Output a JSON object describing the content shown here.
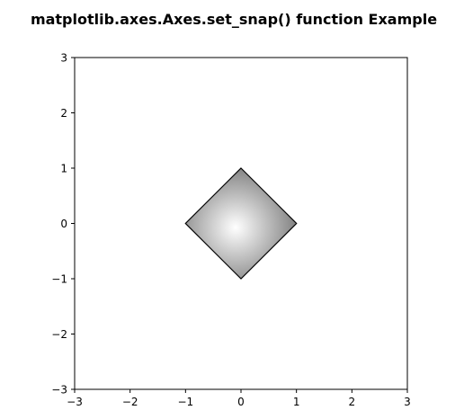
{
  "chart_data": {
    "type": "area",
    "title": "matplotlib.axes.Axes.set_snap() function Example",
    "xlabel": "",
    "ylabel": "",
    "xlim": [
      -3,
      3
    ],
    "ylim": [
      -3,
      3
    ],
    "x_ticks": [
      -3,
      -2,
      -1,
      0,
      1,
      2,
      3
    ],
    "y_ticks": [
      -3,
      -2,
      -1,
      0,
      1,
      2,
      3
    ],
    "x_tick_labels": [
      "−3",
      "−2",
      "−1",
      "0",
      "1",
      "2",
      "3"
    ],
    "y_tick_labels": [
      "−3",
      "−2",
      "−1",
      "0",
      "1",
      "2",
      "3"
    ],
    "grid": false,
    "shapes": [
      {
        "kind": "polygon",
        "x": [
          0,
          1,
          0,
          -1
        ],
        "y": [
          1,
          0,
          -1,
          0
        ],
        "fill": "radial gradient (light center, gray edges)",
        "edge_color": "#000000"
      }
    ],
    "colors": {
      "gradient_center": "#ffffff",
      "gradient_edge": "#7a7a7a",
      "edge": "#000000"
    }
  }
}
